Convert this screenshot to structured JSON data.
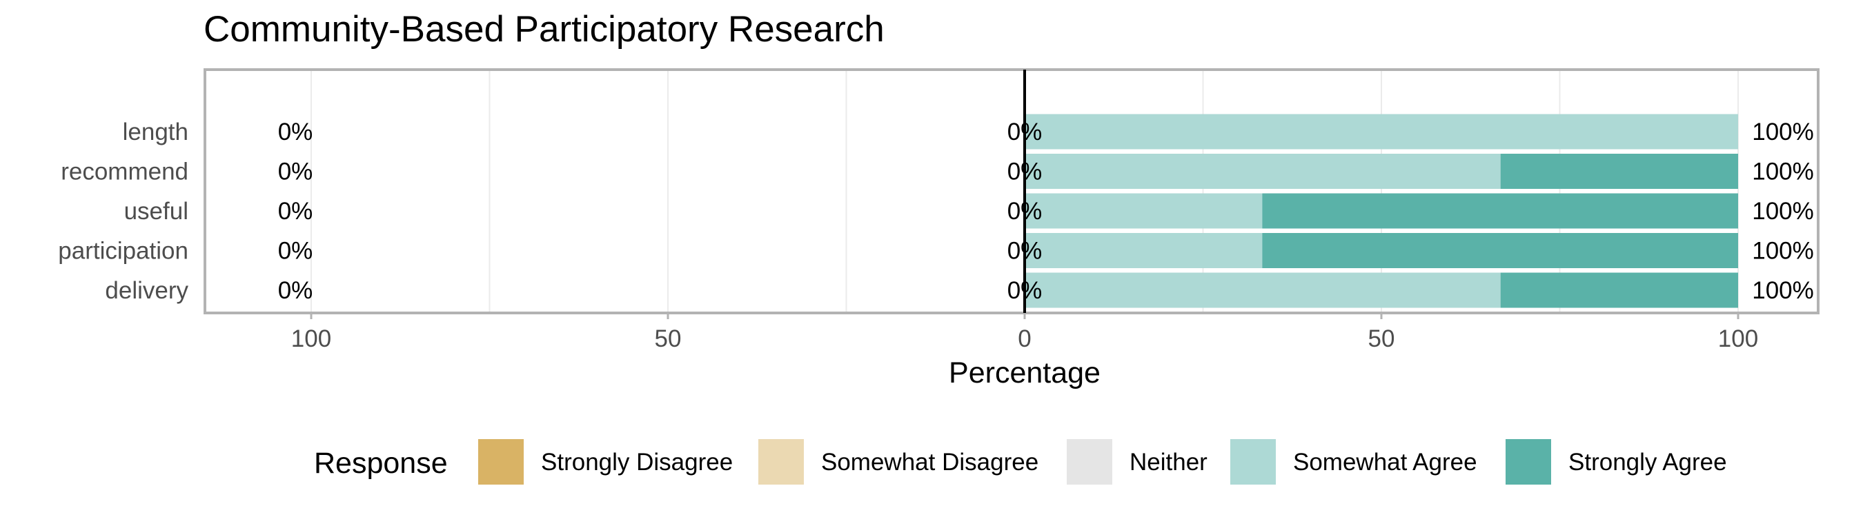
{
  "chart_data": {
    "type": "bar",
    "title": "Community-Based Participatory Research",
    "xlabel": "Percentage",
    "ylabel": "",
    "xlim": [
      -100,
      100
    ],
    "x_ticks": [
      100,
      50,
      0,
      50,
      100
    ],
    "categories": [
      "length",
      "recommend",
      "useful",
      "participation",
      "delivery"
    ],
    "series": [
      {
        "name": "Strongly Disagree",
        "color": "#D9B365",
        "values": [
          0,
          0,
          0,
          0,
          0
        ]
      },
      {
        "name": "Somewhat Disagree",
        "color": "#EBD9B2",
        "values": [
          0,
          0,
          0,
          0,
          0
        ]
      },
      {
        "name": "Neither",
        "color": "#E5E5E5",
        "values": [
          0,
          0,
          0,
          0,
          0
        ]
      },
      {
        "name": "Somewhat Agree",
        "color": "#ADD9D5",
        "values": [
          100,
          66.7,
          33.3,
          33.3,
          66.7
        ]
      },
      {
        "name": "Strongly Agree",
        "color": "#5AB2A8",
        "values": [
          0,
          33.3,
          66.7,
          66.7,
          33.3
        ]
      }
    ],
    "labels": {
      "left": [
        "0%",
        "0%",
        "0%",
        "0%",
        "0%"
      ],
      "center": [
        "0%",
        "0%",
        "0%",
        "0%",
        "0%"
      ],
      "right": [
        "100%",
        "100%",
        "100%",
        "100%",
        "100%"
      ]
    },
    "legend": {
      "title": "Response",
      "position": "bottom"
    },
    "grid": true
  }
}
